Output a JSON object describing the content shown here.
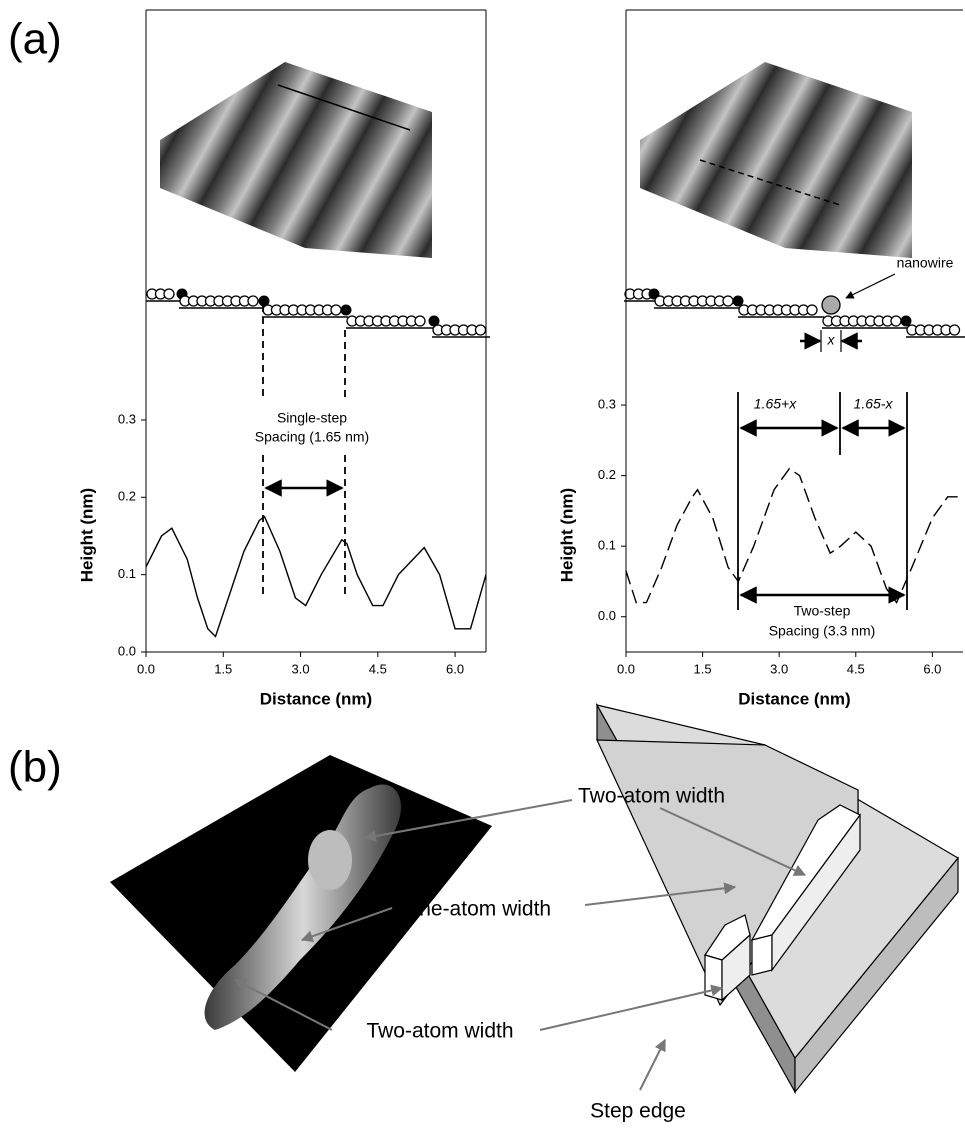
{
  "panel_labels": [
    "(a)",
    "(b)"
  ],
  "chart_data": [
    {
      "type": "line",
      "color": "#000000",
      "dashed": false,
      "x": [
        0,
        0.3,
        0.5,
        0.8,
        1.0,
        1.2,
        1.35,
        1.6,
        1.9,
        2.2,
        2.3,
        2.6,
        2.9,
        3.1,
        3.4,
        3.8,
        3.9,
        4.1,
        4.4,
        4.6,
        4.9,
        5.4,
        5.7,
        6.0,
        6.3,
        6.6
      ],
      "values": [
        0.11,
        0.15,
        0.16,
        0.12,
        0.07,
        0.03,
        0.02,
        0.07,
        0.13,
        0.17,
        0.175,
        0.13,
        0.07,
        0.06,
        0.1,
        0.145,
        0.14,
        0.1,
        0.06,
        0.06,
        0.1,
        0.135,
        0.1,
        0.03,
        0.03,
        0.1
      ],
      "xlim": [
        0,
        6.6
      ],
      "ylim": [
        0,
        0.83
      ],
      "xticks": [
        {
          "value": 0,
          "label": "0.0"
        },
        1.5,
        {
          "value": 3,
          "label": "3.0"
        },
        4.5,
        {
          "value": 6,
          "label": "6.0"
        }
      ],
      "yticks": [
        {
          "value": 0,
          "label": "0.0"
        },
        0.1,
        0.2,
        0.3
      ],
      "x_label": "Distance (nm)",
      "y_label": "Height (nm)"
    },
    {
      "type": "line",
      "color": "#000000",
      "dashed": true,
      "x": [
        0,
        0.2,
        0.4,
        0.7,
        1.0,
        1.3,
        1.4,
        1.7,
        2.0,
        2.2,
        2.5,
        2.9,
        3.2,
        3.4,
        3.7,
        4.0,
        4.2,
        4.5,
        4.8,
        5.1,
        5.3,
        5.6,
        6.0,
        6.3,
        6.6
      ],
      "values": [
        0.065,
        0.02,
        0.02,
        0.07,
        0.13,
        0.17,
        0.18,
        0.14,
        0.07,
        0.05,
        0.1,
        0.18,
        0.21,
        0.2,
        0.14,
        0.09,
        0.1,
        0.12,
        0.1,
        0.04,
        0.02,
        0.07,
        0.14,
        0.17,
        0.17
      ],
      "xlim": [
        0,
        6.6
      ],
      "ylim": [
        -0.05,
        0.86
      ],
      "xticks": [
        {
          "value": 0,
          "label": "0.0"
        },
        1.5,
        {
          "value": 3,
          "label": "3.0"
        },
        4.5,
        {
          "value": 6,
          "label": "6.0"
        }
      ],
      "yticks": [
        {
          "value": 0,
          "label": "0.0"
        },
        0.1,
        0.2,
        0.3
      ],
      "x_label": "Distance (nm)",
      "y_label": "Height (nm)"
    }
  ],
  "panel_a_annotations": {
    "single_step_spacing": [
      "Single-step",
      "Spacing (1.65 nm)"
    ],
    "plus_x": "1.65+x",
    "minus_x": "1.65-x",
    "two_step_spacing": [
      "Two-step",
      "Spacing (3.3 nm)"
    ],
    "nanowire": "nanowire",
    "x_width": "x"
  },
  "panel_b_labels": {
    "two_atom_top": "Two-atom width",
    "one_atom": "One-atom width",
    "two_atom_bottom": "Two-atom width",
    "step_edge": "Step edge"
  }
}
